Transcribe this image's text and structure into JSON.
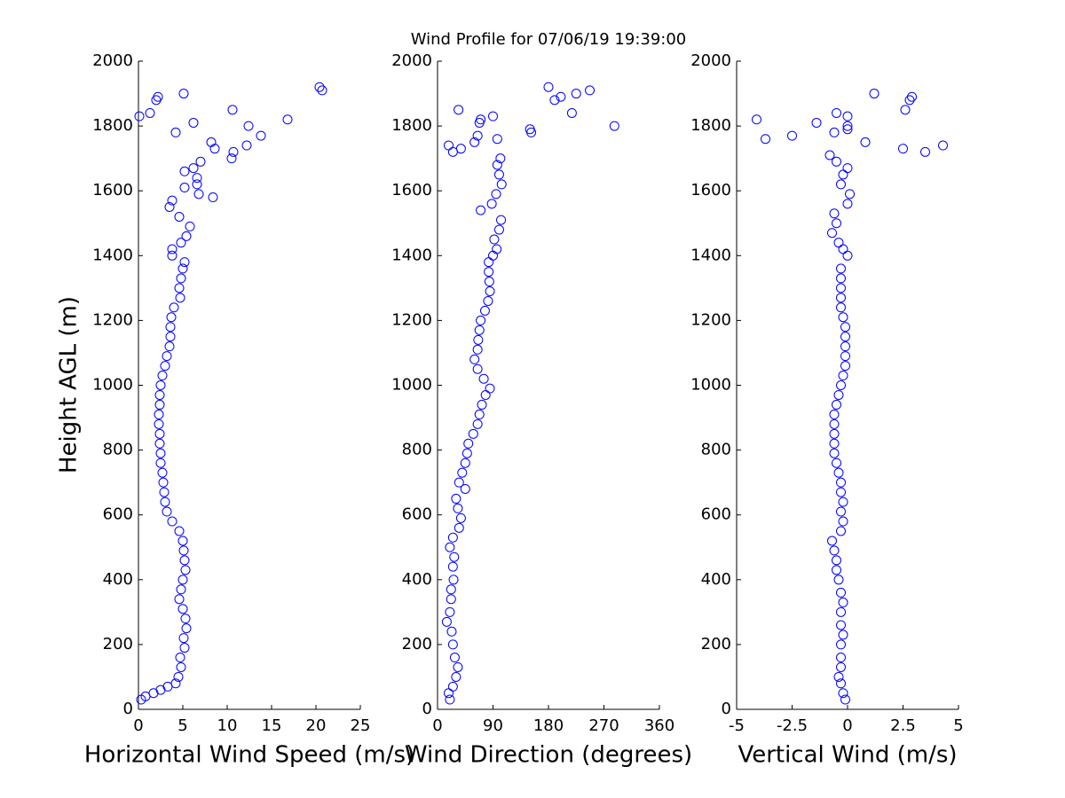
{
  "chart_data": [
    {
      "type": "scatter",
      "title": "Wind Profile for  07/06/19 19:39:00",
      "xlabel": "Horizontal Wind Speed (m/s)",
      "ylabel": "Height AGL (m)",
      "color": "#0000ff",
      "xlim": [
        0,
        25
      ],
      "xticks": [
        0,
        5,
        10,
        15,
        20,
        25
      ],
      "ylim": [
        0,
        2000
      ],
      "yticks": [
        0,
        200,
        400,
        600,
        800,
        1000,
        1200,
        1400,
        1600,
        1800,
        2000
      ],
      "x": [
        0.3,
        0.8,
        1.7,
        2.5,
        3.3,
        4.2,
        4.5,
        4.8,
        4.7,
        5.2,
        5.1,
        5.4,
        5.3,
        5.0,
        4.6,
        4.8,
        5.0,
        5.3,
        5.2,
        5.1,
        5.0,
        4.6,
        3.8,
        3.2,
        3.0,
        2.9,
        2.8,
        2.7,
        2.5,
        2.5,
        2.4,
        2.4,
        2.3,
        2.3,
        2.4,
        2.4,
        2.5,
        2.7,
        3.0,
        3.2,
        3.5,
        3.6,
        3.6,
        3.7,
        4.0,
        4.7,
        4.6,
        4.8,
        5.0,
        5.2,
        3.8,
        3.8,
        4.8,
        5.4,
        5.8,
        4.6,
        3.5,
        3.8,
        5.2,
        6.6,
        5.2,
        7.0,
        0.1,
        1.3,
        2.0,
        2.2,
        5.1,
        4.2,
        6.2,
        8.2,
        8.6,
        10.5,
        10.7,
        10.6,
        12.2,
        12.4,
        13.8,
        16.8,
        20.4,
        20.7,
        8.4,
        6.8,
        6.2,
        6.6
      ],
      "y": [
        30,
        40,
        50,
        60,
        70,
        80,
        100,
        130,
        160,
        190,
        220,
        250,
        280,
        310,
        340,
        370,
        400,
        430,
        460,
        490,
        520,
        550,
        580,
        610,
        640,
        670,
        700,
        730,
        760,
        790,
        820,
        850,
        880,
        910,
        940,
        970,
        1000,
        1030,
        1060,
        1090,
        1120,
        1150,
        1180,
        1210,
        1240,
        1270,
        1300,
        1330,
        1360,
        1380,
        1400,
        1420,
        1440,
        1460,
        1490,
        1520,
        1550,
        1570,
        1610,
        1640,
        1660,
        1690,
        1830,
        1840,
        1880,
        1890,
        1900,
        1780,
        1810,
        1750,
        1730,
        1700,
        1720,
        1850,
        1740,
        1800,
        1770,
        1820,
        1920,
        1910,
        1580,
        1590,
        1670,
        1620
      ]
    },
    {
      "type": "scatter",
      "xlabel": "Wind Direction (degrees)",
      "color": "#0000ff",
      "xlim": [
        0,
        360
      ],
      "xticks": [
        0,
        90,
        180,
        270,
        360
      ],
      "ylim": [
        0,
        2000
      ],
      "yticks": [
        0,
        200,
        400,
        600,
        800,
        1000,
        1200,
        1400,
        1600,
        1800,
        2000
      ],
      "x": [
        20,
        18,
        25,
        30,
        33,
        28,
        25,
        23,
        15,
        20,
        22,
        22,
        26,
        25,
        27,
        20,
        25,
        35,
        38,
        33,
        30,
        45,
        35,
        40,
        45,
        48,
        50,
        58,
        65,
        68,
        72,
        78,
        85,
        75,
        65,
        60,
        65,
        66,
        68,
        70,
        77,
        82,
        85,
        84,
        83,
        83,
        90,
        96,
        92,
        100,
        103,
        70,
        88,
        95,
        104,
        100,
        97,
        102,
        18,
        25,
        38,
        34,
        65,
        60,
        68,
        70,
        90,
        97,
        150,
        152,
        180,
        190,
        200,
        218,
        225,
        247,
        287
      ],
      "y": [
        30,
        50,
        70,
        100,
        130,
        160,
        200,
        240,
        270,
        300,
        340,
        370,
        400,
        440,
        470,
        500,
        530,
        560,
        590,
        620,
        650,
        680,
        700,
        730,
        760,
        790,
        820,
        850,
        880,
        910,
        940,
        970,
        990,
        1020,
        1050,
        1080,
        1110,
        1140,
        1170,
        1200,
        1230,
        1260,
        1290,
        1320,
        1350,
        1380,
        1400,
        1420,
        1450,
        1480,
        1510,
        1540,
        1560,
        1590,
        1620,
        1650,
        1680,
        1700,
        1740,
        1720,
        1730,
        1850,
        1770,
        1750,
        1810,
        1820,
        1830,
        1760,
        1790,
        1780,
        1920,
        1880,
        1890,
        1840,
        1900,
        1910,
        1800
      ]
    },
    {
      "type": "scatter",
      "xlabel": "Vertical Wind (m/s)",
      "color": "#0000ff",
      "xlim": [
        -5,
        5
      ],
      "xticks": [
        -5,
        -2.5,
        0,
        2.5,
        5
      ],
      "ylim": [
        0,
        2000
      ],
      "yticks": [
        0,
        200,
        400,
        600,
        800,
        1000,
        1200,
        1400,
        1600,
        1800,
        2000
      ],
      "x": [
        -0.1,
        -0.2,
        -0.3,
        -0.4,
        -0.3,
        -0.3,
        -0.3,
        -0.2,
        -0.3,
        -0.3,
        -0.2,
        -0.3,
        -0.4,
        -0.5,
        -0.5,
        -0.6,
        -0.7,
        -0.3,
        -0.2,
        -0.3,
        -0.2,
        -0.3,
        -0.3,
        -0.4,
        -0.5,
        -0.6,
        -0.6,
        -0.6,
        -0.6,
        -0.6,
        -0.5,
        -0.4,
        -0.3,
        -0.2,
        -0.1,
        -0.1,
        -0.1,
        -0.1,
        -0.1,
        -0.2,
        -0.3,
        -0.3,
        -0.3,
        -0.3,
        -0.3,
        0.0,
        -0.2,
        -0.4,
        -0.7,
        -0.5,
        -0.6,
        0.0,
        0.1,
        -0.3,
        -0.2,
        0.0,
        -0.5,
        -0.8,
        -4.1,
        -3.7,
        -2.5,
        -1.4,
        -0.6,
        -0.5,
        0.0,
        0.0,
        0.0,
        0.8,
        1.2,
        2.5,
        2.6,
        2.8,
        2.9,
        3.5,
        4.3
      ],
      "y": [
        30,
        50,
        80,
        100,
        130,
        160,
        200,
        230,
        260,
        300,
        330,
        360,
        400,
        430,
        460,
        490,
        520,
        550,
        580,
        610,
        640,
        670,
        700,
        730,
        760,
        790,
        820,
        850,
        880,
        910,
        940,
        970,
        1000,
        1030,
        1060,
        1090,
        1120,
        1150,
        1180,
        1210,
        1240,
        1270,
        1300,
        1330,
        1360,
        1400,
        1420,
        1440,
        1470,
        1500,
        1530,
        1560,
        1590,
        1620,
        1650,
        1670,
        1690,
        1710,
        1820,
        1760,
        1770,
        1810,
        1780,
        1840,
        1830,
        1800,
        1790,
        1750,
        1900,
        1730,
        1850,
        1880,
        1890,
        1720,
        1740
      ]
    }
  ]
}
